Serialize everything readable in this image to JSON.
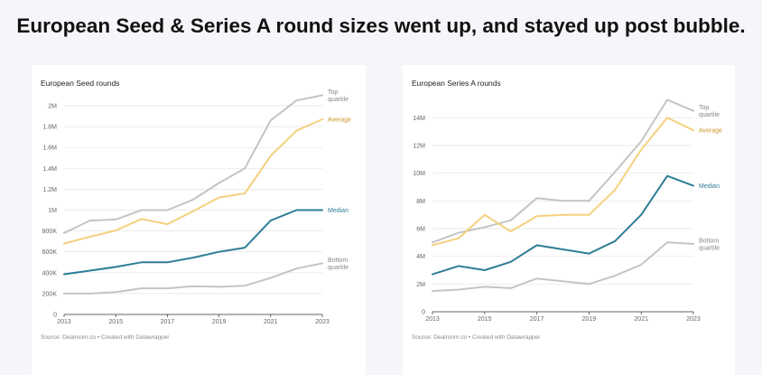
{
  "headline": "European Seed & Series A round sizes went up, and stayed up post bubble.",
  "chart_data": [
    {
      "type": "line",
      "title": "European Seed rounds",
      "source": "Source: Dealroom.co • Created with Datawrapper",
      "x": [
        2013,
        2014,
        2015,
        2016,
        2017,
        2018,
        2019,
        2020,
        2021,
        2022,
        2023
      ],
      "xticks": [
        "2013",
        "2015",
        "2017",
        "2019",
        "2021",
        "2023"
      ],
      "ylim": [
        0,
        2000000
      ],
      "yticks": [
        {
          "v": 0,
          "label": "0"
        },
        {
          "v": 200000,
          "label": "200K"
        },
        {
          "v": 400000,
          "label": "400K"
        },
        {
          "v": 600000,
          "label": "600K"
        },
        {
          "v": 800000,
          "label": "800K"
        },
        {
          "v": 1000000,
          "label": "1M"
        },
        {
          "v": 1200000,
          "label": "1.2M"
        },
        {
          "v": 1400000,
          "label": "1.4M"
        },
        {
          "v": 1600000,
          "label": "1.6M"
        },
        {
          "v": 1800000,
          "label": "1.8M"
        },
        {
          "v": 2000000,
          "label": "2M"
        }
      ],
      "grid": true,
      "series": [
        {
          "name": "Top quartile",
          "label_lines": [
            "Top",
            "quartile"
          ],
          "color": "#c4c4c4",
          "values": [
            780000,
            900000,
            910000,
            1000000,
            1000000,
            1100000,
            1260000,
            1400000,
            1860000,
            2050000,
            2100000
          ]
        },
        {
          "name": "Average",
          "label_lines": [
            "Average"
          ],
          "color": "#f5d07e",
          "values": [
            680000,
            745000,
            805000,
            915000,
            865000,
            990000,
            1120000,
            1160000,
            1520000,
            1760000,
            1870000
          ]
        },
        {
          "name": "Median",
          "label_lines": [
            "Median"
          ],
          "color": "#2e7d96",
          "values": [
            385000,
            420000,
            455000,
            500000,
            500000,
            545000,
            600000,
            640000,
            900000,
            1000000,
            1000000
          ]
        },
        {
          "name": "Bottom quartile",
          "label_lines": [
            "Bottom",
            "quartile"
          ],
          "color": "#c4c4c4",
          "values": [
            200000,
            200000,
            215000,
            250000,
            250000,
            270000,
            265000,
            275000,
            350000,
            440000,
            490000
          ]
        }
      ],
      "label_colors": {
        "Top quartile": "#888888",
        "Average": "#c9962a",
        "Median": "#2e7d96",
        "Bottom quartile": "#888888"
      }
    },
    {
      "type": "line",
      "title": "European Series A rounds",
      "source": "Source: Dealroom.co • Created with Datawrapper",
      "x": [
        2013,
        2014,
        2015,
        2016,
        2017,
        2018,
        2019,
        2020,
        2021,
        2022,
        2023
      ],
      "xticks": [
        "2013",
        "2015",
        "2017",
        "2019",
        "2021",
        "2023"
      ],
      "ylim": [
        0,
        15000000
      ],
      "yticks": [
        {
          "v": 0,
          "label": "0"
        },
        {
          "v": 2000000,
          "label": "2M"
        },
        {
          "v": 4000000,
          "label": "4M"
        },
        {
          "v": 6000000,
          "label": "6M"
        },
        {
          "v": 8000000,
          "label": "8M"
        },
        {
          "v": 10000000,
          "label": "10M"
        },
        {
          "v": 12000000,
          "label": "12M"
        },
        {
          "v": 14000000,
          "label": "14M"
        }
      ],
      "grid": true,
      "series": [
        {
          "name": "Top quartile",
          "label_lines": [
            "Top",
            "quartile"
          ],
          "color": "#c4c4c4",
          "values": [
            5000000,
            5700000,
            6100000,
            6600000,
            8200000,
            8000000,
            8000000,
            10100000,
            12300000,
            15300000,
            14500000
          ]
        },
        {
          "name": "Average",
          "label_lines": [
            "Average"
          ],
          "color": "#f5d07e",
          "values": [
            4800000,
            5300000,
            7000000,
            5800000,
            6900000,
            7000000,
            7000000,
            8800000,
            11700000,
            14000000,
            13100000
          ]
        },
        {
          "name": "Median",
          "label_lines": [
            "Median"
          ],
          "color": "#2e7d96",
          "values": [
            2700000,
            3300000,
            3000000,
            3600000,
            4800000,
            4500000,
            4200000,
            5100000,
            7000000,
            9800000,
            9100000
          ]
        },
        {
          "name": "Bottom quartile",
          "label_lines": [
            "Bottom",
            "quartile"
          ],
          "color": "#c4c4c4",
          "values": [
            1500000,
            1600000,
            1800000,
            1700000,
            2400000,
            2200000,
            2000000,
            2600000,
            3400000,
            5000000,
            4900000
          ]
        }
      ],
      "label_colors": {
        "Top quartile": "#888888",
        "Average": "#c9962a",
        "Median": "#2e7d96",
        "Bottom quartile": "#888888"
      }
    }
  ]
}
